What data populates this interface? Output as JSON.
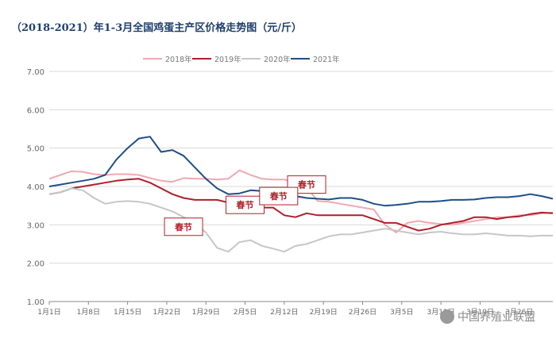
{
  "title": "（2018-2021）年1-3月全国鸡蛋主产区价格走势图（元/斤）",
  "watermark": "中国养殖业联盟",
  "colors": {
    "2018年": "#f0a8b0",
    "2019年": "#b01e2a",
    "2020年": "#c6c6c6",
    "2021年": "#1f4e84",
    "grid": "#d9d9d9",
    "axis": "#888888"
  },
  "chart_data": {
    "type": "line",
    "ylim": [
      1.0,
      7.0
    ],
    "y_ticks": [
      "1.00",
      "2.00",
      "3.00",
      "4.00",
      "5.00",
      "6.00",
      "7.00"
    ],
    "x_ticks": [
      "1月1日",
      "1月8日",
      "1月15日",
      "1月22日",
      "1月29日",
      "2月5日",
      "2月12日",
      "2月19日",
      "2月26日",
      "3月5日",
      "3月12日",
      "3月19日",
      "3月26日"
    ],
    "legend_position": "top",
    "x": [
      1,
      3,
      5,
      7,
      9,
      11,
      13,
      15,
      17,
      19,
      21,
      23,
      25,
      27,
      29,
      31,
      33,
      35,
      37,
      39,
      41,
      43,
      45,
      47,
      49,
      51,
      53,
      55,
      57,
      59,
      61,
      63,
      65,
      67,
      69,
      71,
      73,
      75,
      77,
      79,
      81,
      83,
      85,
      87,
      89,
      91
    ],
    "series": [
      {
        "name": "2018年",
        "values": [
          4.2,
          4.3,
          4.4,
          4.38,
          4.32,
          4.3,
          4.32,
          4.32,
          4.3,
          4.22,
          4.15,
          4.12,
          4.22,
          4.2,
          4.2,
          4.18,
          4.2,
          4.42,
          4.3,
          4.2,
          4.18,
          4.18,
          4.1,
          3.98,
          3.62,
          3.6,
          3.55,
          3.5,
          3.45,
          3.4,
          3.0,
          2.8,
          3.05,
          3.1,
          3.05,
          3.02,
          3.0,
          3.05,
          3.1,
          3.15,
          3.2,
          3.2,
          3.25,
          3.25,
          3.3,
          3.32
        ]
      },
      {
        "name": "2019年",
        "values": [
          3.8,
          3.85,
          3.95,
          4.0,
          4.05,
          4.1,
          4.15,
          4.18,
          4.2,
          4.1,
          3.95,
          3.8,
          3.7,
          3.65,
          3.65,
          3.65,
          3.58,
          3.55,
          3.55,
          3.45,
          3.45,
          3.25,
          3.2,
          3.3,
          3.25,
          3.25,
          3.25,
          3.25,
          3.25,
          3.15,
          3.05,
          3.05,
          2.95,
          2.85,
          2.9,
          3.0,
          3.05,
          3.1,
          3.2,
          3.2,
          3.15,
          3.2,
          3.22,
          3.28,
          3.32,
          3.3
        ]
      },
      {
        "name": "2020年",
        "values": [
          3.8,
          3.85,
          3.95,
          3.9,
          3.7,
          3.55,
          3.6,
          3.62,
          3.6,
          3.55,
          3.45,
          3.35,
          3.2,
          3.05,
          2.8,
          2.4,
          2.3,
          2.55,
          2.6,
          2.45,
          2.38,
          2.3,
          2.45,
          2.5,
          2.6,
          2.7,
          2.75,
          2.75,
          2.8,
          2.85,
          2.9,
          2.85,
          2.8,
          2.75,
          2.8,
          2.82,
          2.78,
          2.75,
          2.75,
          2.78,
          2.75,
          2.72,
          2.72,
          2.7,
          2.72,
          2.72
        ]
      },
      {
        "name": "2021年",
        "values": [
          4.0,
          4.05,
          4.1,
          4.15,
          4.2,
          4.3,
          4.7,
          5.0,
          5.25,
          5.3,
          4.9,
          4.95,
          4.8,
          4.5,
          4.2,
          3.95,
          3.8,
          3.82,
          3.9,
          3.88,
          3.85,
          3.85,
          3.75,
          3.7,
          3.68,
          3.66,
          3.7,
          3.7,
          3.65,
          3.55,
          3.5,
          3.52,
          3.55,
          3.6,
          3.6,
          3.62,
          3.65,
          3.65,
          3.66,
          3.7,
          3.72,
          3.72,
          3.75,
          3.8,
          3.75,
          3.68
        ]
      }
    ],
    "annotations": [
      {
        "text": "春节",
        "series": "2018年",
        "x": 47,
        "y": 4.05
      },
      {
        "text": "春节",
        "series": "2019年",
        "x": 36,
        "y": 3.52
      },
      {
        "text": "春节",
        "series": "2020年",
        "x": 25,
        "y": 2.95
      },
      {
        "text": "春节",
        "series": "2021年",
        "x": 42,
        "y": 3.75
      }
    ]
  }
}
